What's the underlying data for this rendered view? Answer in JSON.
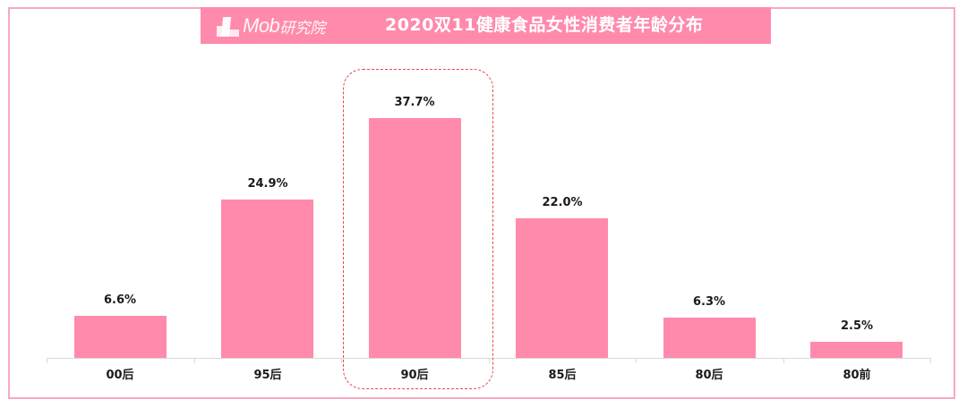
{
  "header": {
    "logo_text": "Mob",
    "logo_text_cn": "研究院",
    "title": "2020双11健康食品女性消费者年龄分布"
  },
  "colors": {
    "bar": "#FF8AAB",
    "banner": "#FF8AAB",
    "frame": "#F7A9C0",
    "highlight": "#E8464E",
    "axis": "#D9D9D9"
  },
  "highlight": {
    "category": "90后"
  },
  "chart_data": {
    "type": "bar",
    "title": "2020双11健康食品女性消费者年龄分布",
    "xlabel": "",
    "ylabel": "",
    "categories": [
      "00后",
      "95后",
      "90后",
      "85后",
      "80后",
      "80前"
    ],
    "values": [
      6.6,
      24.9,
      37.7,
      22.0,
      6.3,
      2.5
    ],
    "value_labels": [
      "6.6%",
      "24.9%",
      "37.7%",
      "22.0%",
      "6.3%",
      "2.5%"
    ],
    "unit": "%",
    "ylim": [
      0,
      40
    ],
    "grid": false,
    "legend": null,
    "annotations": [
      "dashed rounded box highlighting 90后"
    ]
  }
}
